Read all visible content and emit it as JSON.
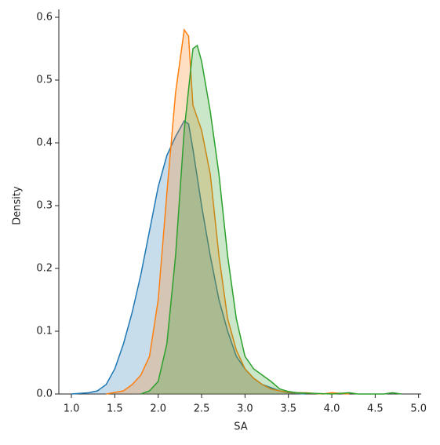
{
  "chart_data": {
    "type": "kde",
    "x_label": "SA",
    "y_label": "Density",
    "xlim": [
      0.855,
      5.03
    ],
    "ylim": [
      0,
      0.6125
    ],
    "xticks": [
      {
        "value": 1,
        "label": "1.0"
      },
      1.5,
      {
        "value": 2,
        "label": "2.0"
      },
      2.5,
      {
        "value": 3,
        "label": "3.0"
      },
      3.5,
      {
        "value": 4,
        "label": "4.0"
      },
      4.5,
      {
        "value": 5,
        "label": "5.0"
      }
    ],
    "yticks": [
      {
        "value": 0,
        "label": "0.0"
      },
      0.1,
      0.2,
      0.3,
      0.4,
      0.5,
      0.6
    ],
    "series": [
      {
        "color": "#1f77b4",
        "x": [
          1.0,
          1.2,
          1.3,
          1.4,
          1.5,
          1.6,
          1.7,
          1.8,
          1.9,
          2.0,
          2.1,
          2.2,
          2.3,
          2.35,
          2.4,
          2.5,
          2.6,
          2.7,
          2.8,
          2.9,
          3.0,
          3.1,
          3.2,
          3.3,
          3.4,
          3.5,
          3.6,
          3.7
        ],
        "values": [
          0,
          0.002,
          0.005,
          0.015,
          0.04,
          0.08,
          0.13,
          0.19,
          0.26,
          0.33,
          0.38,
          0.41,
          0.435,
          0.43,
          0.39,
          0.3,
          0.22,
          0.15,
          0.1,
          0.06,
          0.04,
          0.025,
          0.015,
          0.01,
          0.005,
          0.002,
          0.001,
          0
        ]
      },
      {
        "color": "#ff7f0e",
        "x": [
          1.4,
          1.6,
          1.7,
          1.8,
          1.9,
          2.0,
          2.1,
          2.2,
          2.3,
          2.35,
          2.4,
          2.5,
          2.6,
          2.7,
          2.8,
          2.9,
          3.0,
          3.1,
          3.2,
          3.3,
          3.4,
          3.5,
          3.6,
          3.7,
          3.8,
          3.9,
          4.0,
          4.1,
          4.2
        ],
        "values": [
          0,
          0.005,
          0.015,
          0.03,
          0.06,
          0.15,
          0.32,
          0.48,
          0.58,
          0.57,
          0.46,
          0.42,
          0.35,
          0.22,
          0.12,
          0.07,
          0.04,
          0.025,
          0.015,
          0.008,
          0.005,
          0.003,
          0.002,
          0.002,
          0.001,
          0,
          0.002,
          0.001,
          0
        ]
      },
      {
        "color": "#2ca02c",
        "x": [
          1.8,
          1.9,
          2.0,
          2.1,
          2.2,
          2.3,
          2.4,
          2.45,
          2.5,
          2.6,
          2.7,
          2.8,
          2.9,
          3.0,
          3.1,
          3.2,
          3.3,
          3.4,
          3.5,
          3.6,
          3.8,
          4.0,
          4.2,
          4.3,
          4.6,
          4.7,
          4.8
        ],
        "values": [
          0,
          0.005,
          0.02,
          0.08,
          0.22,
          0.42,
          0.55,
          0.555,
          0.53,
          0.45,
          0.35,
          0.22,
          0.12,
          0.06,
          0.04,
          0.03,
          0.02,
          0.008,
          0.004,
          0.002,
          0.001,
          0,
          0.002,
          0,
          0,
          0.002,
          0
        ]
      }
    ]
  }
}
